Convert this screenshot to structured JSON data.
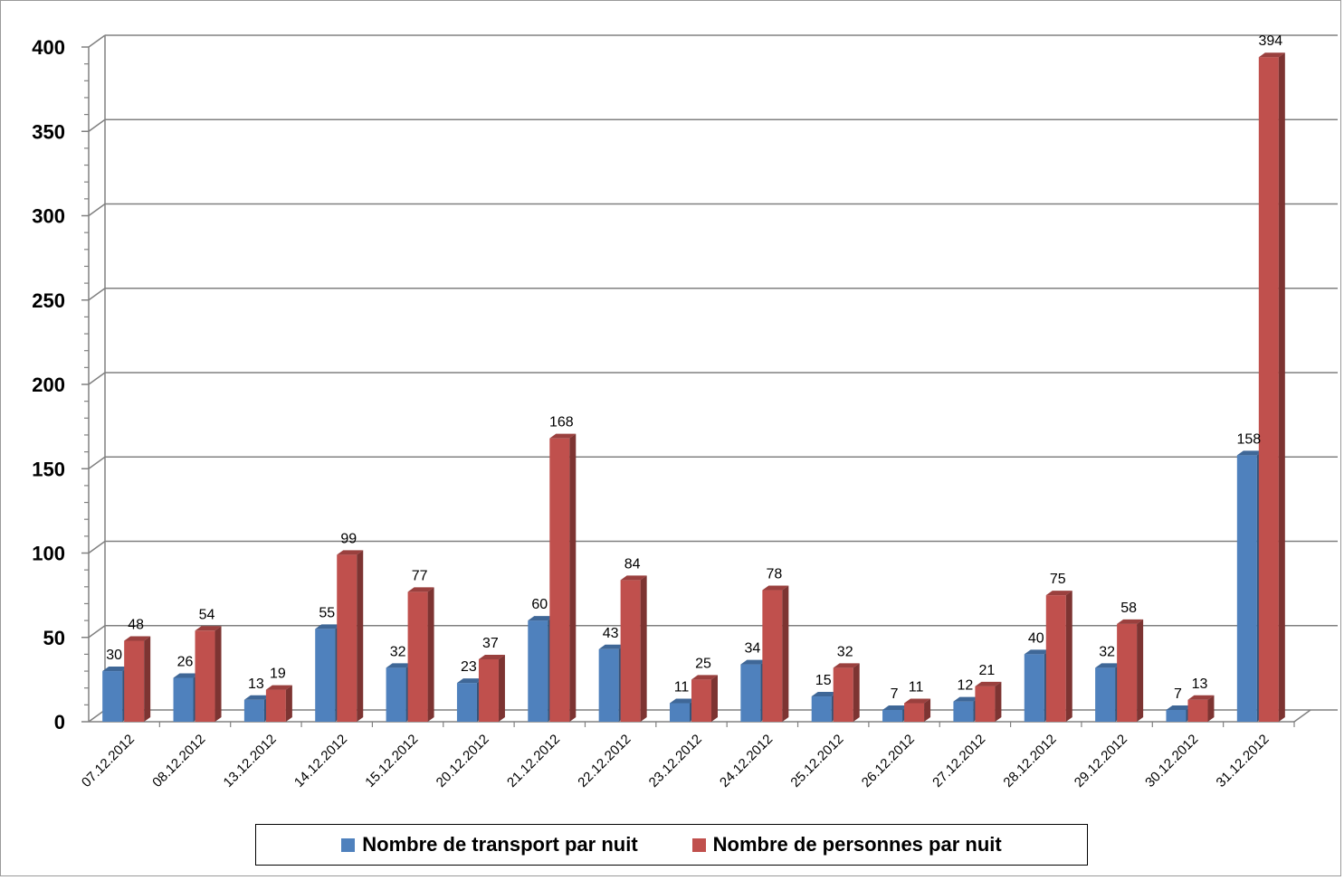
{
  "chart_data": {
    "type": "bar",
    "title": "",
    "xlabel": "",
    "ylabel": "",
    "ylim": [
      0,
      400
    ],
    "yticks": [
      0,
      50,
      100,
      150,
      200,
      250,
      300,
      350,
      400
    ],
    "grid": true,
    "legend_position": "bottom",
    "categories": [
      "07.12.2012",
      "08.12.2012",
      "13.12.2012",
      "14.12.2012",
      "15.12.2012",
      "20.12.2012",
      "21.12.2012",
      "22.12.2012",
      "23.12.2012",
      "24.12.2012",
      "25.12.2012",
      "26.12.2012",
      "27.12.2012",
      "28.12.2012",
      "29.12.2012",
      "30.12.2012",
      "31.12.2012"
    ],
    "series": [
      {
        "name": "Nombre de transport par nuit",
        "color": "#4f81bd",
        "values": [
          30,
          26,
          13,
          55,
          32,
          23,
          60,
          43,
          11,
          34,
          15,
          7,
          12,
          40,
          32,
          7,
          158
        ]
      },
      {
        "name": "Nombre de personnes par nuit",
        "color": "#c0504d",
        "values": [
          48,
          54,
          19,
          99,
          77,
          37,
          168,
          84,
          25,
          78,
          32,
          11,
          21,
          75,
          58,
          13,
          394
        ]
      }
    ]
  }
}
